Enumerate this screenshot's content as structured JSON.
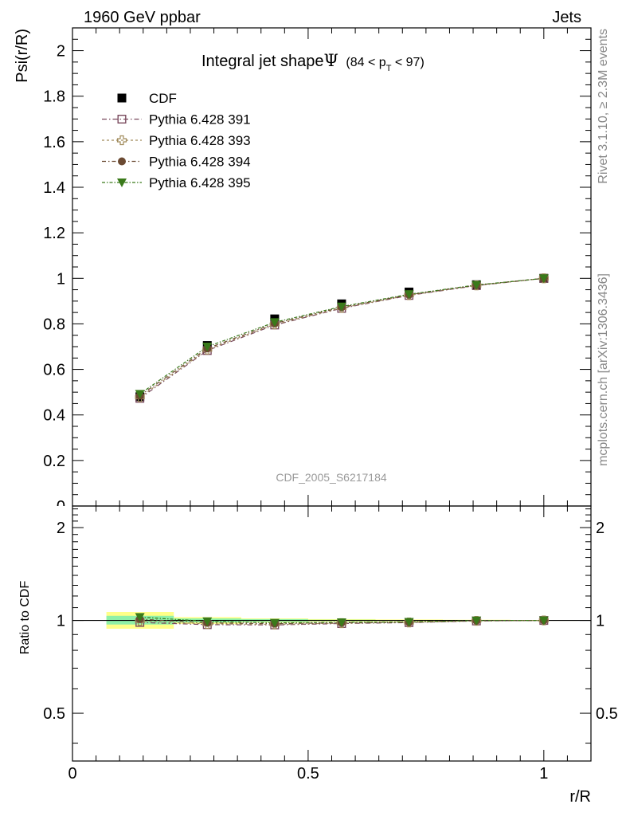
{
  "header": {
    "left": "1960 GeV ppbar",
    "right": "Jets"
  },
  "side_text": {
    "rivet": "Rivet 3.1.10, ≥ 2.3M events",
    "mcplots": "mcplots.cern.ch [arXiv:1306.3436]"
  },
  "chart_data": [
    {
      "type": "scatter",
      "title": "Integral jet shape",
      "title_symbol": "Ψ",
      "title_range": "(84 < p",
      "title_range_sub": "T",
      "title_range_end": " < 97)",
      "analysis_label": "CDF_2005_S6217184",
      "ylabel": "Psi(r/R)",
      "xlim": [
        0,
        1.1
      ],
      "ylim": [
        0,
        2.1
      ],
      "x_ticks": [
        0,
        0.5,
        1
      ],
      "y_ticks": [
        0.2,
        0.4,
        0.6,
        0.8,
        1,
        1.2,
        1.4,
        1.6,
        1.8,
        2
      ],
      "y_tick_labels": [
        "0.2",
        "0.4",
        "0.6",
        "0.8",
        "1",
        "1.2",
        "1.4",
        "1.6",
        "1.8",
        "2"
      ],
      "legend_position": "top-left",
      "x": [
        0.143,
        0.286,
        0.429,
        0.571,
        0.714,
        0.857,
        1.0
      ],
      "series": [
        {
          "name": "CDF",
          "color": "#000000",
          "marker": "filled-square",
          "values": [
            0.48,
            0.705,
            0.822,
            0.888,
            0.94,
            0.972,
            1.0
          ]
        },
        {
          "name": "Pythia 6.428 391",
          "color": "#7a4a5e",
          "marker": "open-square",
          "values": [
            0.473,
            0.683,
            0.795,
            0.868,
            0.925,
            0.968,
            1.0
          ]
        },
        {
          "name": "Pythia 6.428 393",
          "color": "#a08a5a",
          "marker": "open-cross",
          "values": [
            0.478,
            0.687,
            0.798,
            0.87,
            0.926,
            0.969,
            1.0
          ]
        },
        {
          "name": "Pythia 6.428 394",
          "color": "#6b4a32",
          "marker": "filled-circle",
          "values": [
            0.485,
            0.692,
            0.802,
            0.873,
            0.928,
            0.97,
            1.0
          ]
        },
        {
          "name": "Pythia 6.428 395",
          "color": "#3a7a1a",
          "marker": "filled-triangle-down",
          "values": [
            0.492,
            0.7,
            0.807,
            0.876,
            0.93,
            0.971,
            1.0
          ]
        }
      ]
    },
    {
      "type": "scatter",
      "ylabel": "Ratio to CDF",
      "xlabel": "r/R",
      "log_y": true,
      "xlim": [
        0,
        1.1
      ],
      "ylim": [
        0.35,
        2.35
      ],
      "x_ticks": [
        0,
        0.5,
        1
      ],
      "x_tick_labels": [
        "0",
        "0.5",
        "1"
      ],
      "y_ticks": [
        0.5,
        1,
        2
      ],
      "y_tick_labels": [
        "0.5",
        "1",
        "2"
      ],
      "reference_line": 1,
      "uncertainty_bands": [
        {
          "x_range": [
            0.072,
            0.215
          ],
          "outer": [
            0.94,
            1.065
          ],
          "inner": [
            0.97,
            1.035
          ]
        },
        {
          "x_range": [
            0.215,
            0.358
          ],
          "outer": [
            0.975,
            1.025
          ],
          "inner": [
            0.985,
            1.015
          ]
        },
        {
          "x_range": [
            0.358,
            0.5
          ],
          "outer": [
            0.985,
            1.015
          ],
          "inner": [
            0.99,
            1.01
          ]
        },
        {
          "x_range": [
            0.5,
            0.643
          ],
          "outer": [
            0.99,
            1.01
          ],
          "inner": [
            0.995,
            1.005
          ]
        },
        {
          "x_range": [
            0.643,
            0.786
          ],
          "outer": [
            0.993,
            1.007
          ],
          "inner": [
            0.997,
            1.003
          ]
        },
        {
          "x_range": [
            0.786,
            0.929
          ],
          "outer": [
            0.995,
            1.005
          ],
          "inner": [
            0.998,
            1.002
          ]
        },
        {
          "x_range": [
            0.929,
            1.072
          ],
          "outer": [
            0.997,
            1.003
          ],
          "inner": [
            0.999,
            1.001
          ]
        }
      ],
      "x": [
        0.143,
        0.286,
        0.429,
        0.571,
        0.714,
        0.857,
        1.0
      ],
      "series": [
        {
          "name": "Pythia 6.428 391",
          "color": "#7a4a5e",
          "marker": "open-square",
          "values": [
            0.985,
            0.969,
            0.967,
            0.977,
            0.984,
            0.996,
            1.0
          ]
        },
        {
          "name": "Pythia 6.428 393",
          "color": "#a08a5a",
          "marker": "open-cross",
          "values": [
            0.996,
            0.974,
            0.971,
            0.98,
            0.985,
            0.997,
            1.0
          ]
        },
        {
          "name": "Pythia 6.428 394",
          "color": "#6b4a32",
          "marker": "filled-circle",
          "values": [
            1.01,
            0.982,
            0.976,
            0.983,
            0.987,
            0.998,
            1.0
          ]
        },
        {
          "name": "Pythia 6.428 395",
          "color": "#3a7a1a",
          "marker": "filled-triangle-down",
          "values": [
            1.025,
            0.993,
            0.982,
            0.986,
            0.989,
            0.999,
            1.0
          ]
        }
      ]
    }
  ]
}
